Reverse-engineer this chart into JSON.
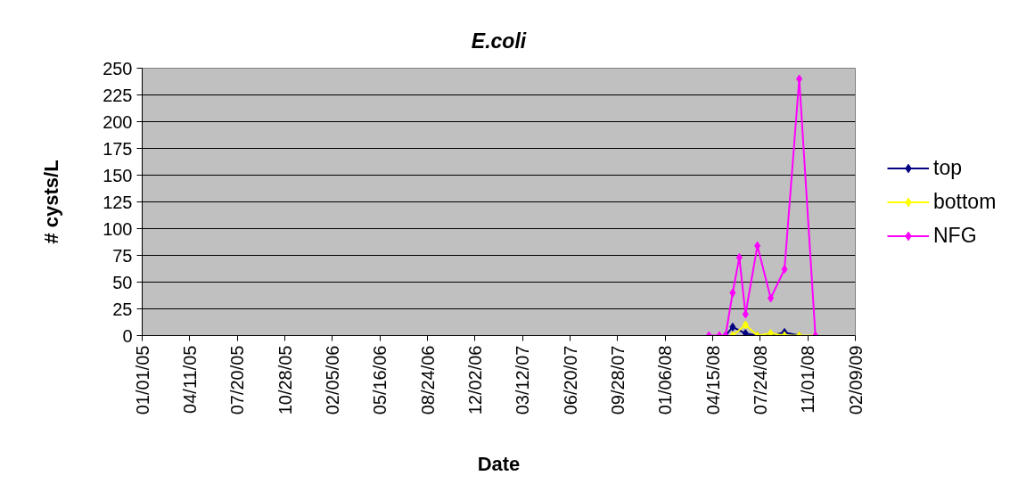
{
  "chart_data": {
    "type": "line",
    "title": "E.coli",
    "xlabel": "Date",
    "ylabel": "# cysts/L",
    "xlim": [
      "2005-01-01",
      "2009-02-09"
    ],
    "xticks": [
      {
        "value": "2005-01-01",
        "label": "01/01/05"
      },
      {
        "value": "2005-04-11",
        "label": "04/11/05"
      },
      {
        "value": "2005-07-20",
        "label": "07/20/05"
      },
      {
        "value": "2005-10-28",
        "label": "10/28/05"
      },
      {
        "value": "2006-02-05",
        "label": "02/05/06"
      },
      {
        "value": "2006-05-16",
        "label": "05/16/06"
      },
      {
        "value": "2006-08-24",
        "label": "08/24/06"
      },
      {
        "value": "2006-12-02",
        "label": "12/02/06"
      },
      {
        "value": "2007-03-12",
        "label": "03/12/07"
      },
      {
        "value": "2007-06-20",
        "label": "06/20/07"
      },
      {
        "value": "2007-09-28",
        "label": "09/28/07"
      },
      {
        "value": "2008-01-06",
        "label": "01/06/08"
      },
      {
        "value": "2008-04-15",
        "label": "04/15/08"
      },
      {
        "value": "2008-07-24",
        "label": "07/24/08"
      },
      {
        "value": "2008-11-01",
        "label": "11/01/08"
      },
      {
        "value": "2009-02-09",
        "label": "02/09/09"
      }
    ],
    "ylim": [
      0,
      250
    ],
    "yticks": [
      0,
      25,
      50,
      75,
      100,
      125,
      150,
      175,
      200,
      225,
      250
    ],
    "grid": "y",
    "legend": "right",
    "marker": "diamond",
    "line_style": "solid",
    "series": [
      {
        "name": "top",
        "color": "#000080",
        "x": [
          "2008-05-12",
          "2008-05-27",
          "2008-06-23",
          "2008-07-18",
          "2008-08-15",
          "2008-09-13",
          "2008-10-14"
        ],
        "values": [
          0,
          8,
          2,
          0,
          0,
          3,
          0
        ]
      },
      {
        "name": "bottom",
        "color": "#ffff00",
        "x": [
          "2008-05-27",
          "2008-06-23",
          "2008-07-18",
          "2008-08-15",
          "2008-09-13",
          "2008-10-14",
          "2008-11-17"
        ],
        "values": [
          0,
          10,
          0,
          2,
          0,
          0,
          0
        ]
      },
      {
        "name": "NFG",
        "color": "#ff00ff",
        "x": [
          "2008-04-07",
          "2008-04-29",
          "2008-05-12",
          "2008-05-27",
          "2008-06-10",
          "2008-06-23",
          "2008-07-18",
          "2008-08-15",
          "2008-09-13",
          "2008-10-14",
          "2008-11-17"
        ],
        "values": [
          0,
          0,
          0,
          40,
          73,
          20,
          84,
          35,
          62,
          240,
          0
        ]
      }
    ]
  }
}
